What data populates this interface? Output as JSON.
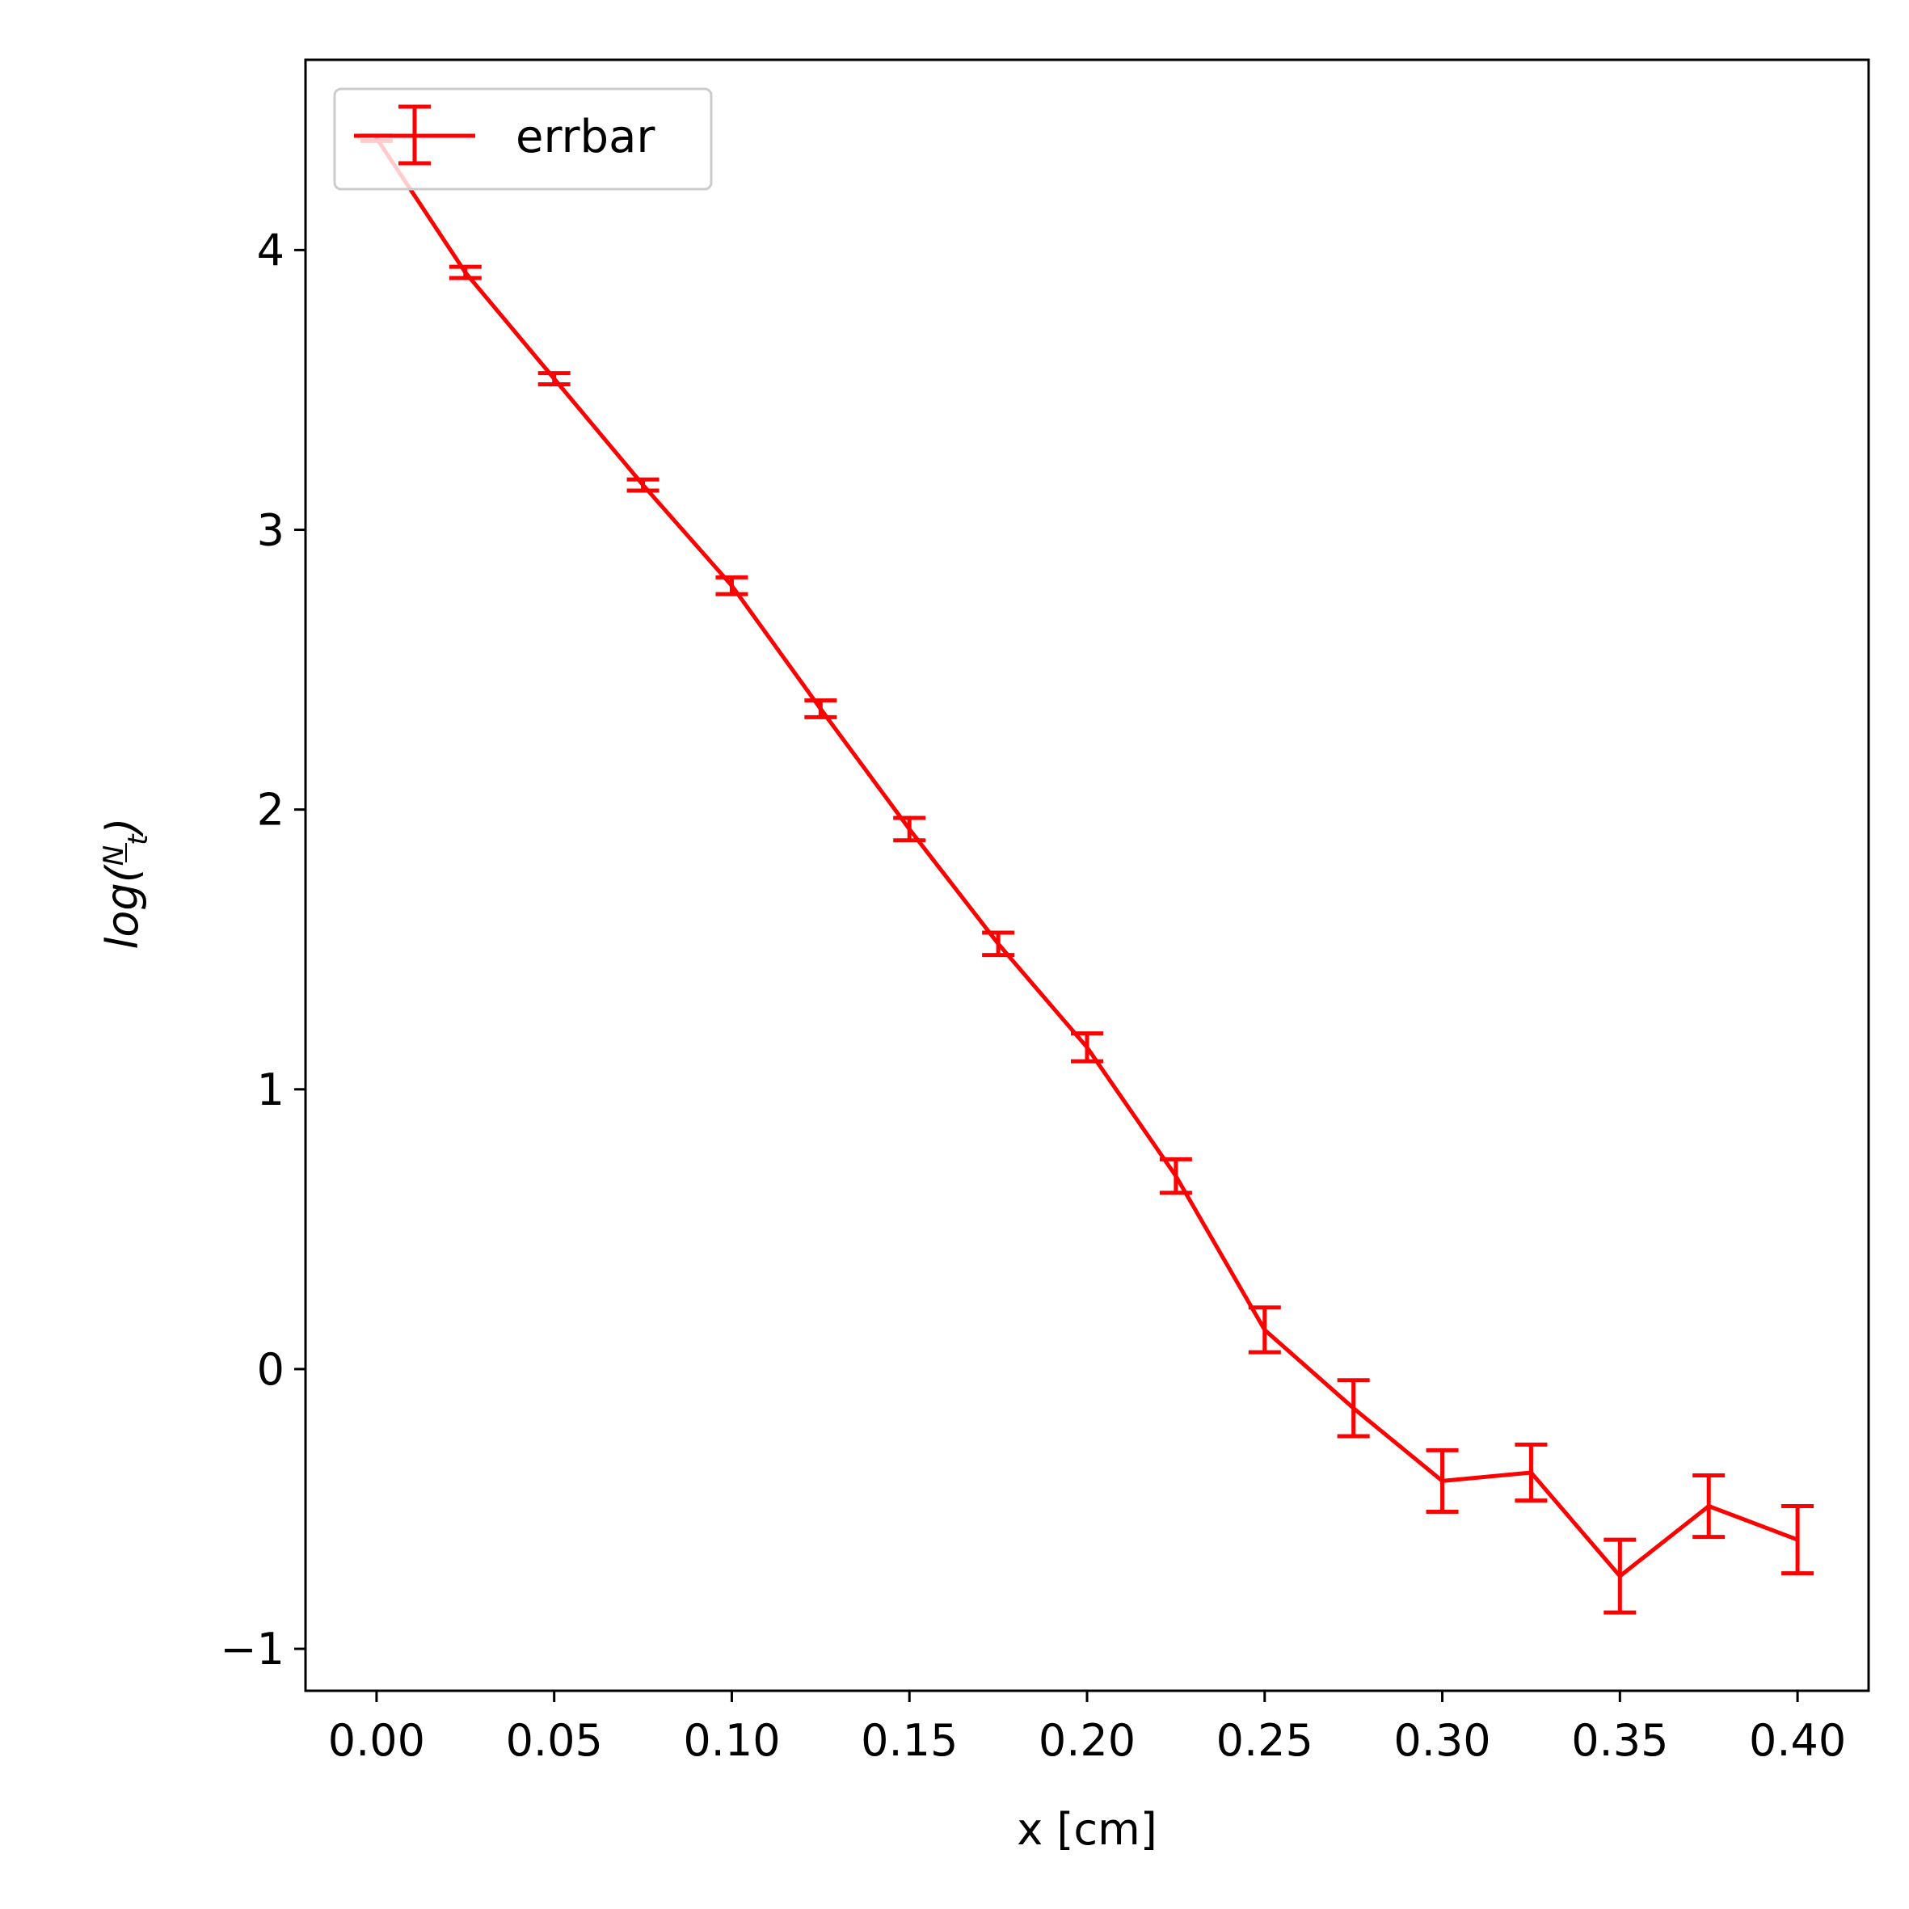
{
  "chart_data": {
    "type": "line",
    "xlabel": "x [cm]",
    "ylabel": {
      "prefix": "log(",
      "numerator": "N",
      "denominator": "t",
      "suffix": ")"
    },
    "xlim": [
      -0.02,
      0.42
    ],
    "ylim": [
      -1.15,
      4.68
    ],
    "xticks": [
      0.0,
      0.05,
      0.1,
      0.15,
      0.2,
      0.25,
      0.3,
      0.35,
      0.4
    ],
    "xtick_labels": [
      "0.00",
      "0.05",
      "0.10",
      "0.15",
      "0.20",
      "0.25",
      "0.30",
      "0.35",
      "0.40"
    ],
    "yticks": [
      -1,
      0,
      1,
      2,
      3,
      4
    ],
    "ytick_labels": [
      "−1",
      "0",
      "1",
      "2",
      "3",
      "4"
    ],
    "grid": false,
    "legend": {
      "placement": "top-left"
    },
    "series": [
      {
        "name": "errbar",
        "color": "#ff0000",
        "error_bars": true,
        "x": [
          0.0,
          0.025,
          0.05,
          0.075,
          0.1,
          0.125,
          0.15,
          0.175,
          0.2,
          0.225,
          0.25,
          0.275,
          0.3,
          0.325,
          0.35,
          0.375,
          0.4
        ],
        "y": [
          4.4,
          3.92,
          3.54,
          3.16,
          2.8,
          2.36,
          1.93,
          1.52,
          1.15,
          0.69,
          0.14,
          -0.14,
          -0.4,
          -0.37,
          -0.74,
          -0.49,
          -0.61
        ],
        "yerr": [
          0.01,
          0.02,
          0.02,
          0.02,
          0.03,
          0.03,
          0.04,
          0.04,
          0.05,
          0.06,
          0.08,
          0.1,
          0.11,
          0.1,
          0.13,
          0.11,
          0.12
        ]
      }
    ]
  }
}
